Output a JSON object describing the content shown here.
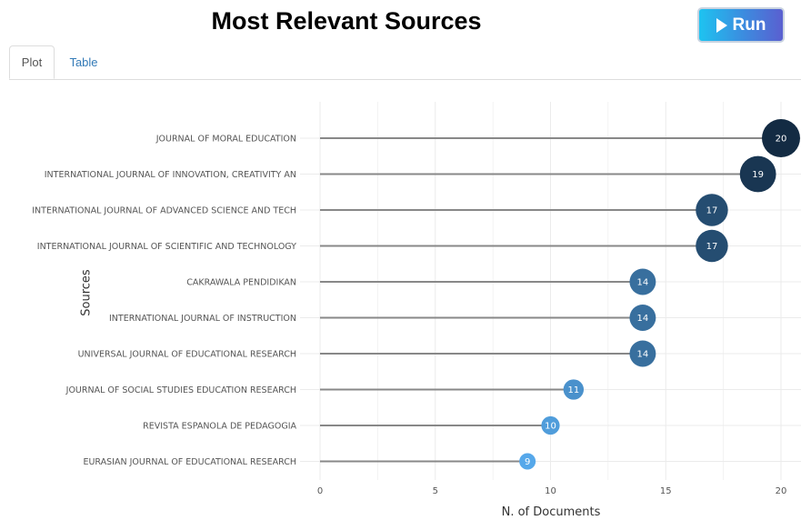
{
  "header": {
    "title": "Most Relevant Sources",
    "run_label": "Run"
  },
  "tabs": [
    {
      "label": "Plot",
      "active": true
    },
    {
      "label": "Table",
      "active": false
    }
  ],
  "colors": {
    "low": "#56a8ea",
    "high": "#132b43",
    "stem": "#888888",
    "grid": "#ebebeb"
  },
  "chart_data": {
    "type": "scatter",
    "style": "lollipop",
    "title": "",
    "xlabel": "N. of Documents",
    "ylabel": "Sources",
    "xlim": [
      0,
      20
    ],
    "xticks": [
      0,
      5,
      10,
      15,
      20
    ],
    "grid": true,
    "categories": [
      "JOURNAL OF MORAL EDUCATION",
      "INTERNATIONAL JOURNAL OF INNOVATION, CREATIVITY AN",
      "INTERNATIONAL JOURNAL OF ADVANCED SCIENCE AND TECH",
      "INTERNATIONAL JOURNAL OF SCIENTIFIC AND TECHNOLOGY",
      "CAKRAWALA PENDIDIKAN",
      "INTERNATIONAL JOURNAL OF INSTRUCTION",
      "UNIVERSAL JOURNAL OF EDUCATIONAL RESEARCH",
      "JOURNAL OF SOCIAL STUDIES EDUCATION RESEARCH",
      "REVISTA ESPANOLA DE PEDAGOGIA",
      "EURASIAN JOURNAL OF EDUCATIONAL RESEARCH"
    ],
    "values": [
      20,
      19,
      17,
      17,
      14,
      14,
      14,
      11,
      10,
      9
    ]
  }
}
